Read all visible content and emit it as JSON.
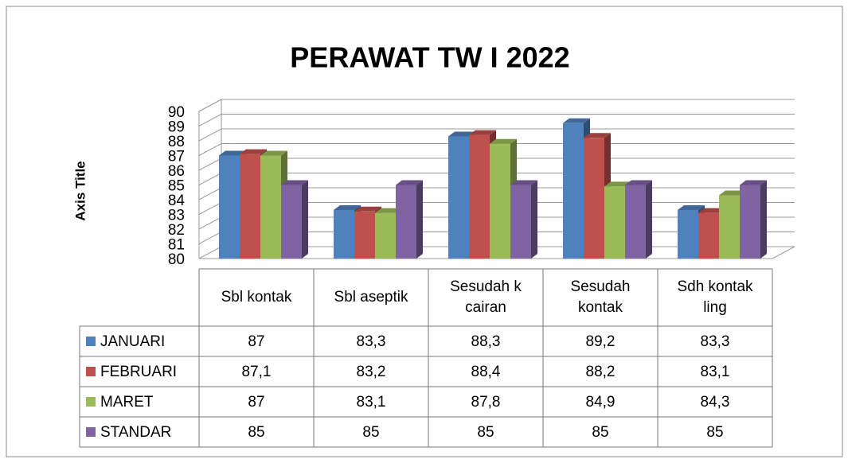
{
  "chart_data": {
    "type": "bar3d",
    "title": "PERAWAT TW I 2022",
    "y_axis_label": "Axis Title",
    "categories": [
      "Sbl kontak",
      "Sbl aseptik",
      "Sesudah k cairan",
      "Sesudah kontak",
      "Sdh kontak ling"
    ],
    "series": [
      {
        "name": "JANUARI",
        "color": "#4f81bd",
        "values": [
          87,
          83.3,
          88.3,
          89.2,
          83.3
        ],
        "value_labels": [
          "87",
          "83,3",
          "88,3",
          "89,2",
          "83,3"
        ]
      },
      {
        "name": "FEBRUARI",
        "color": "#c0504d",
        "values": [
          87.1,
          83.2,
          88.4,
          88.2,
          83.1
        ],
        "value_labels": [
          "87,1",
          "83,2",
          "88,4",
          "88,2",
          "83,1"
        ]
      },
      {
        "name": "MARET",
        "color": "#9bbb59",
        "values": [
          87,
          83.1,
          87.8,
          84.9,
          84.3
        ],
        "value_labels": [
          "87",
          "83,1",
          "87,8",
          "84,9",
          "84,3"
        ]
      },
      {
        "name": "STANDAR",
        "color": "#8064a2",
        "values": [
          85,
          85,
          85,
          85,
          85
        ],
        "value_labels": [
          "85",
          "85",
          "85",
          "85",
          "85"
        ]
      }
    ],
    "ylim": [
      80,
      90
    ],
    "yticks": [
      80,
      81,
      82,
      83,
      84,
      85,
      86,
      87,
      88,
      89,
      90
    ],
    "grid": true,
    "data_table": true
  }
}
